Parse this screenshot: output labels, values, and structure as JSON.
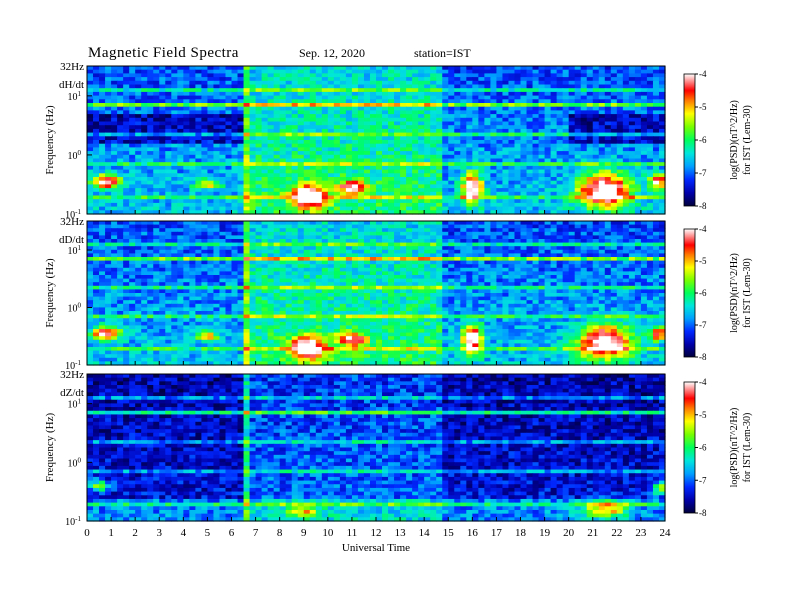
{
  "header": {
    "title": "Magnetic Field Spectra",
    "date": "Sep. 12, 2020",
    "station": "station=IST"
  },
  "chart_data": {
    "type": "heatmap",
    "xlabel": "Universal Time",
    "x_ticks": [
      "0",
      "1",
      "2",
      "3",
      "4",
      "5",
      "6",
      "7",
      "8",
      "9",
      "10",
      "11",
      "12",
      "13",
      "14",
      "15",
      "16",
      "17",
      "18",
      "19",
      "20",
      "21",
      "22",
      "23",
      "24"
    ],
    "xlim": [
      0,
      24
    ],
    "ylabel": "Frequency (Hz)",
    "y_scale": "log",
    "ylim": [
      0.1,
      32
    ],
    "y_top_label": "32Hz",
    "y_tick_labels": [
      {
        "base": "10",
        "exp": "1",
        "value": 10
      },
      {
        "base": "10",
        "exp": "0",
        "value": 1
      },
      {
        "base": "10",
        "exp": "-1",
        "value": 0.1
      }
    ],
    "colorbar": {
      "label_line1": "log(PSD)(nT^2/Hz)",
      "label_line2": "for IST (Lem-30)",
      "ticks": [
        "-4",
        "-5",
        "-6",
        "-7",
        "-8"
      ],
      "range": [
        -8,
        -4
      ],
      "colors": [
        "#ffffff",
        "#ff0000",
        "#ffff00",
        "#00ff00",
        "#00ffff",
        "#0000ff",
        "#000044"
      ]
    },
    "panels": [
      {
        "component": "dH/dt"
      },
      {
        "component": "dD/dt"
      },
      {
        "component": "dZ/dt"
      }
    ]
  }
}
